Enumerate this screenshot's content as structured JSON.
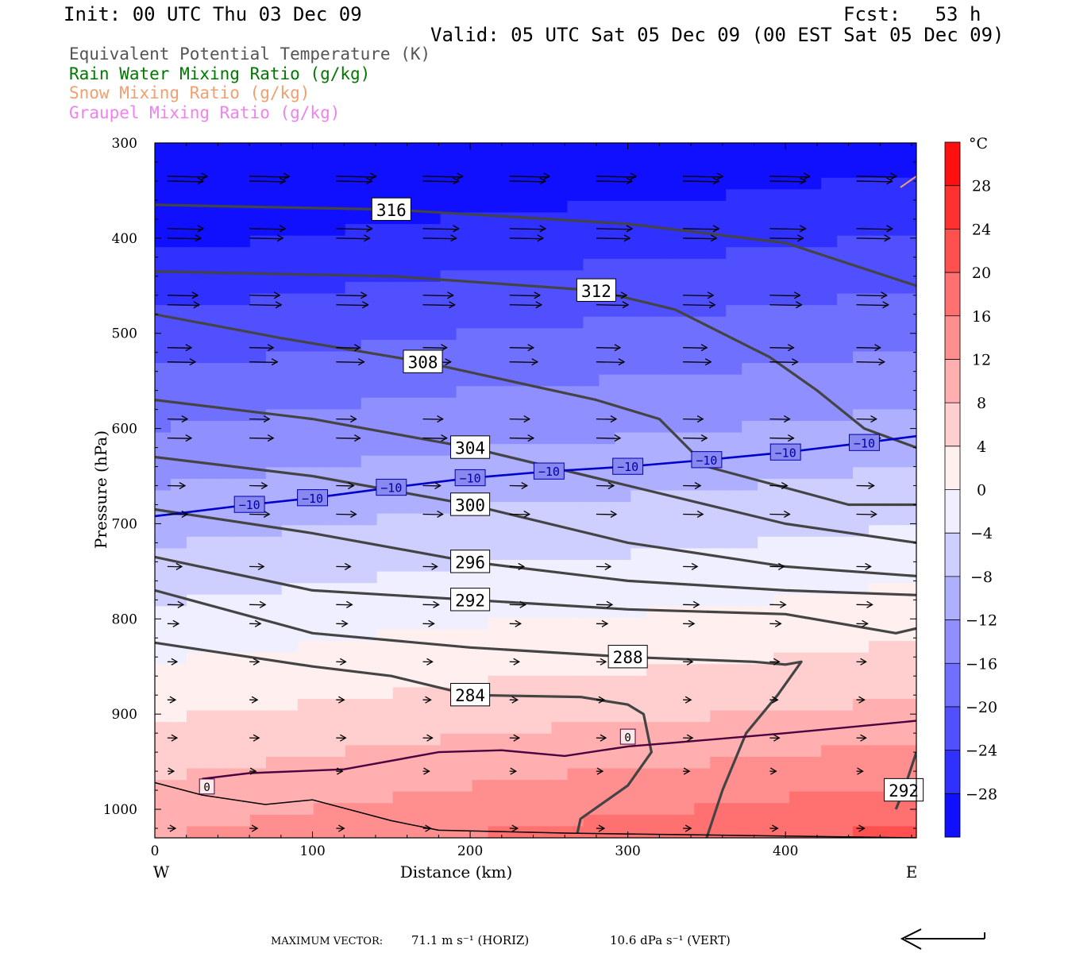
{
  "header": {
    "init": "Init: 00 UTC Thu 03 Dec 09",
    "fcst": "Fcst:   53 h",
    "valid": "Valid: 05 UTC Sat 05 Dec 09 (00 EST Sat 05 Dec 09)"
  },
  "legend": [
    {
      "label": "Equivalent Potential Temperature (K)",
      "color": "#555555"
    },
    {
      "label": "Rain Water Mixing Ratio (g/kg)",
      "color": "#007700"
    },
    {
      "label": "Snow Mixing Ratio (g/kg)",
      "color": "#f0a070"
    },
    {
      "label": "Graupel Mixing Ratio (g/kg)",
      "color": "#ee82ee"
    }
  ],
  "footer": {
    "label": "MAXIMUM VECTOR:",
    "horiz": "71.1 m s⁻¹ (HORIZ)",
    "vert": "10.6 dPa s⁻¹ (VERT)"
  },
  "chart_data": {
    "type": "cross-section contour",
    "xlabel": "Distance (km)",
    "ylabel": "Pressure (hPa)",
    "xlim": [
      0,
      483
    ],
    "ylim": [
      1030,
      300
    ],
    "x_ticks": [
      0,
      100,
      200,
      300,
      400
    ],
    "y_ticks": [
      300,
      400,
      500,
      600,
      700,
      800,
      900,
      1000
    ],
    "x_end_labels": {
      "left": "W",
      "right": "E"
    },
    "colorbar": {
      "unit": "°C",
      "tick_labels": [
        "28",
        "24",
        "20",
        "16",
        "12",
        "8",
        "4",
        "0",
        "−4",
        "−8",
        "−12",
        "−16",
        "−20",
        "−24",
        "−28"
      ],
      "tick_values": [
        28,
        24,
        20,
        16,
        12,
        8,
        4,
        0,
        -4,
        -8,
        -12,
        -16,
        -20,
        -24,
        -28
      ],
      "range": [
        -32,
        32
      ],
      "cold_color": "#0000ff",
      "warm_color": "#ff0000"
    },
    "theta_e_contours": [
      {
        "label": "312",
        "points": [
          [
            0,
            435
          ],
          [
            150,
            440
          ],
          [
            280,
            455
          ],
          [
            330,
            475
          ],
          [
            390,
            525
          ],
          [
            420,
            560
          ],
          [
            450,
            600
          ],
          [
            483,
            620
          ]
        ]
      },
      {
        "label": "316",
        "points": [
          [
            0,
            365
          ],
          [
            150,
            370
          ],
          [
            300,
            385
          ],
          [
            400,
            405
          ],
          [
            483,
            450
          ]
        ]
      },
      {
        "label": "308",
        "points": [
          [
            0,
            480
          ],
          [
            80,
            505
          ],
          [
            170,
            530
          ],
          [
            280,
            570
          ],
          [
            320,
            590
          ],
          [
            350,
            640
          ],
          [
            440,
            680
          ],
          [
            483,
            680
          ]
        ]
      },
      {
        "label": "304",
        "points": [
          [
            0,
            570
          ],
          [
            100,
            590
          ],
          [
            200,
            620
          ],
          [
            300,
            660
          ],
          [
            400,
            700
          ],
          [
            483,
            720
          ]
        ]
      },
      {
        "label": "300",
        "points": [
          [
            0,
            630
          ],
          [
            100,
            650
          ],
          [
            200,
            680
          ],
          [
            300,
            720
          ],
          [
            400,
            745
          ],
          [
            483,
            755
          ]
        ]
      },
      {
        "label": "296",
        "points": [
          [
            0,
            685
          ],
          [
            100,
            710
          ],
          [
            200,
            740
          ],
          [
            300,
            760
          ],
          [
            400,
            770
          ],
          [
            483,
            775
          ]
        ]
      },
      {
        "label": "292",
        "points": [
          [
            0,
            735
          ],
          [
            100,
            770
          ],
          [
            200,
            780
          ],
          [
            300,
            790
          ],
          [
            400,
            795
          ],
          [
            470,
            815
          ],
          [
            483,
            810
          ]
        ]
      },
      {
        "label": "288",
        "points": [
          [
            0,
            770
          ],
          [
            100,
            815
          ],
          [
            200,
            830
          ],
          [
            300,
            840
          ],
          [
            380,
            845
          ],
          [
            400,
            848
          ],
          [
            410,
            845
          ],
          [
            395,
            880
          ],
          [
            375,
            920
          ],
          [
            360,
            980
          ],
          [
            350,
            1030
          ]
        ]
      },
      {
        "label": "284",
        "points": [
          [
            0,
            825
          ],
          [
            100,
            850
          ],
          [
            150,
            860
          ],
          [
            200,
            880
          ],
          [
            270,
            882
          ],
          [
            300,
            890
          ],
          [
            310,
            900
          ],
          [
            315,
            940
          ],
          [
            300,
            975
          ],
          [
            270,
            1010
          ],
          [
            268,
            1025
          ]
        ]
      },
      {
        "label": "292",
        "points": [
          [
            483,
            940
          ],
          [
            475,
            980
          ],
          [
            470,
            1000
          ]
        ]
      }
    ],
    "isotherm_minus10": {
      "label": "−10",
      "points": [
        [
          0,
          692
        ],
        [
          60,
          680
        ],
        [
          100,
          673
        ],
        [
          150,
          662
        ],
        [
          200,
          652
        ],
        [
          250,
          645
        ],
        [
          300,
          640
        ],
        [
          350,
          633
        ],
        [
          400,
          625
        ],
        [
          450,
          615
        ],
        [
          483,
          608
        ]
      ]
    },
    "isotherm_zero": {
      "label": "0",
      "points": [
        [
          30,
          968
        ],
        [
          60,
          962
        ],
        [
          120,
          958
        ],
        [
          180,
          940
        ],
        [
          220,
          938
        ],
        [
          260,
          944
        ],
        [
          300,
          934
        ],
        [
          330,
          930
        ],
        [
          400,
          920
        ],
        [
          483,
          907
        ]
      ]
    },
    "wind_vectors": [
      {
        "p": 335,
        "len": 50
      },
      {
        "p": 340,
        "len": 45
      },
      {
        "p": 390,
        "len": 45
      },
      {
        "p": 400,
        "len": 42
      },
      {
        "p": 460,
        "len": 38
      },
      {
        "p": 470,
        "len": 40
      },
      {
        "p": 515,
        "len": 30
      },
      {
        "p": 530,
        "len": 35
      },
      {
        "p": 590,
        "len": 25
      },
      {
        "p": 610,
        "len": 30
      },
      {
        "p": 660,
        "len": 22
      },
      {
        "p": 690,
        "len": 25
      },
      {
        "p": 745,
        "len": 18
      },
      {
        "p": 785,
        "len": 20
      },
      {
        "p": 805,
        "len": 14
      },
      {
        "p": 845,
        "len": 12
      },
      {
        "p": 885,
        "len": 10
      },
      {
        "p": 925,
        "len": 12
      },
      {
        "p": 960,
        "len": 8
      },
      {
        "p": 1020,
        "len": 10
      }
    ],
    "snow_marks": [
      [
        483,
        345
      ]
    ],
    "surface_boundary": [
      [
        0,
        972
      ],
      [
        30,
        985
      ],
      [
        70,
        995
      ],
      [
        100,
        990
      ],
      [
        150,
        1012
      ],
      [
        180,
        1022
      ],
      [
        260,
        1025
      ],
      [
        483,
        1030
      ]
    ]
  }
}
